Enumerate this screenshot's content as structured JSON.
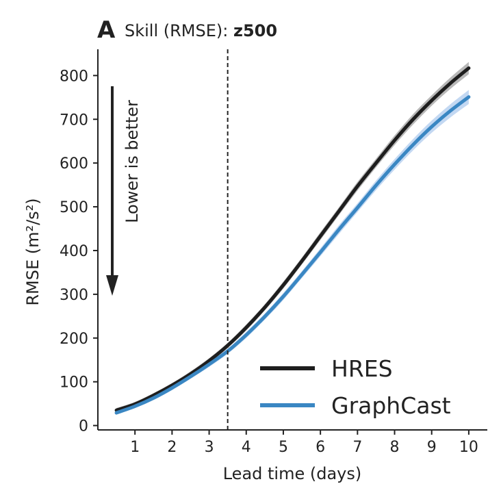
{
  "chart_data": {
    "type": "line",
    "panel_letter": "A",
    "title_prefix": "Skill (RMSE): ",
    "title_variable": "z500",
    "xlabel": "Lead time (days)",
    "ylabel": "RMSE (m²/s²)",
    "xlim": [
      0,
      10.5
    ],
    "ylim": [
      -10,
      860
    ],
    "xticks": [
      1,
      2,
      3,
      4,
      5,
      6,
      7,
      8,
      9,
      10
    ],
    "yticks": [
      0,
      100,
      200,
      300,
      400,
      500,
      600,
      700,
      800
    ],
    "vline_x": 3.5,
    "annotation": "Lower is better",
    "grid": false,
    "legend_position": "lower-right",
    "series": [
      {
        "name": "HRES",
        "color": "#1e1e1e",
        "band_color": "#9a9a9a",
        "x": [
          0.5,
          1,
          1.5,
          2,
          2.5,
          3,
          3.5,
          4,
          4.5,
          5,
          5.5,
          6,
          6.5,
          7,
          7.5,
          8,
          8.5,
          9,
          9.5,
          10
        ],
        "y": [
          35,
          49,
          69,
          92,
          118,
          148,
          183,
          224,
          270,
          321,
          376,
          433,
          490,
          547,
          600,
          652,
          700,
          743,
          782,
          817
        ],
        "band": [
          5,
          5,
          5,
          5,
          6,
          6,
          6,
          7,
          7,
          8,
          8,
          9,
          9,
          10,
          10,
          11,
          12,
          12,
          13,
          14
        ]
      },
      {
        "name": "GraphCast",
        "color": "#3a87c3",
        "band_color": "#a9c8ec",
        "x": [
          0.5,
          1,
          1.5,
          2,
          2.5,
          3,
          3.5,
          4,
          4.5,
          5,
          5.5,
          6,
          6.5,
          7,
          7.5,
          8,
          8.5,
          9,
          9.5,
          10
        ],
        "y": [
          29,
          44,
          63,
          86,
          112,
          140,
          170,
          207,
          249,
          295,
          345,
          396,
          448,
          498,
          549,
          597,
          642,
          683,
          719,
          751
        ],
        "band": [
          4,
          4,
          5,
          5,
          5,
          6,
          6,
          7,
          7,
          8,
          8,
          9,
          10,
          10,
          11,
          12,
          13,
          14,
          15,
          16
        ]
      }
    ]
  }
}
